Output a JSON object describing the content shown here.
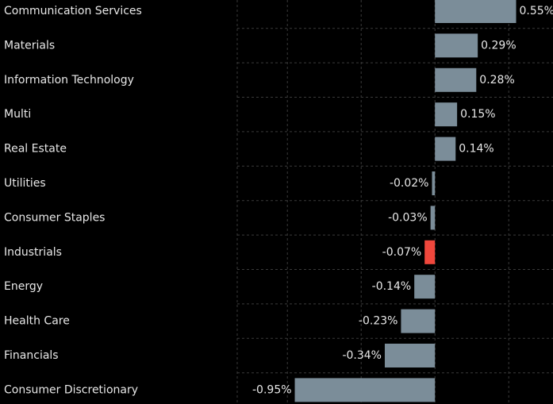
{
  "chart_data": {
    "type": "bar",
    "orientation": "horizontal",
    "categories": [
      "Communication Services",
      "Materials",
      "Information Technology",
      "Multi",
      "Real Estate",
      "Utilities",
      "Consumer Staples",
      "Industrials",
      "Energy",
      "Health Care",
      "Financials",
      "Consumer Discretionary"
    ],
    "values": [
      0.55,
      0.29,
      0.28,
      0.15,
      0.14,
      -0.02,
      -0.03,
      -0.07,
      -0.14,
      -0.23,
      -0.34,
      -0.95
    ],
    "value_labels": [
      "0.55%",
      "0.29%",
      "0.28%",
      "0.15%",
      "0.14%",
      "-0.02%",
      "-0.03%",
      "-0.07%",
      "-0.14%",
      "-0.23%",
      "-0.34%",
      "-0.95%"
    ],
    "colors": [
      "#7b8d99",
      "#7b8d99",
      "#7b8d99",
      "#7b8d99",
      "#7b8d99",
      "#7b8d99",
      "#7b8d99",
      "#f0473c",
      "#7b8d99",
      "#7b8d99",
      "#7b8d99",
      "#7b8d99"
    ],
    "xlim": [
      -1.34,
      0.8
    ],
    "xticks": [
      -1,
      -0.5,
      0,
      0.5
    ],
    "grid": true
  }
}
